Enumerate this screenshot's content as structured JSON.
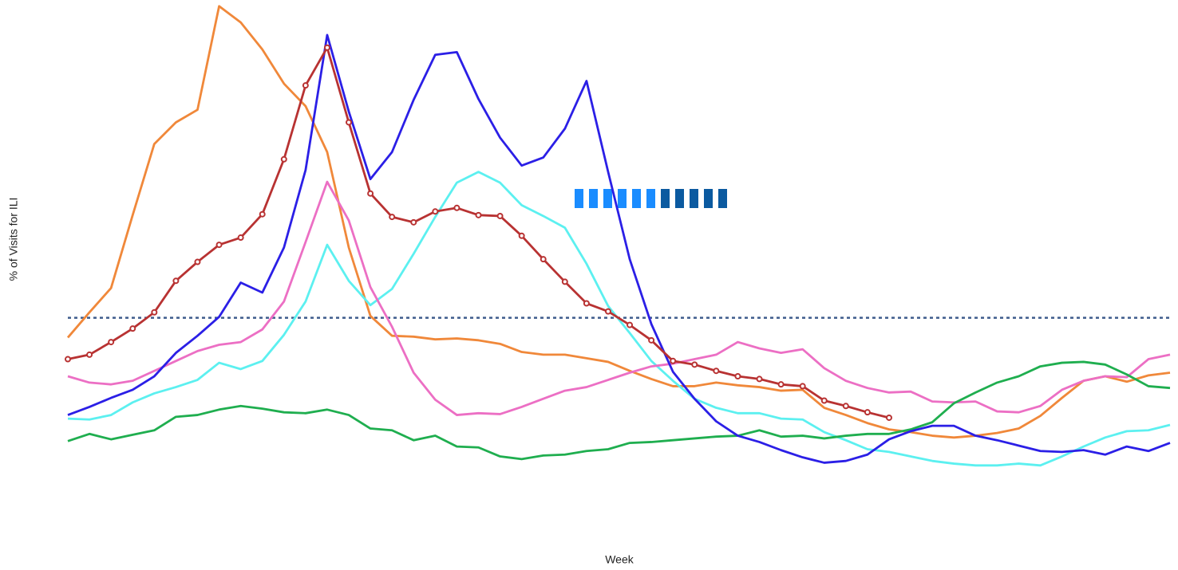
{
  "chart_data": {
    "type": "line",
    "y_label": "% of Visits for ILI",
    "x_label": "Week",
    "categories": [
      null,
      null,
      null,
      null,
      null,
      null,
      null,
      null,
      null,
      null,
      null,
      null,
      null,
      null,
      null,
      null,
      null,
      null,
      null,
      null,
      null,
      null,
      null,
      null,
      null,
      null,
      null,
      null,
      null,
      null,
      null,
      null,
      null,
      null,
      null,
      null,
      null,
      null,
      null,
      null,
      null,
      null,
      null,
      null,
      null,
      null,
      null,
      null,
      null,
      null,
      null,
      null
    ],
    "ylim": [
      0,
      6.1
    ],
    "reference_line": 2.58,
    "reference_color": "#3e5c8c",
    "series": [
      {
        "color": "#f0883a",
        "values": [
          2.36,
          2.64,
          2.91,
          3.72,
          4.51,
          4.75,
          4.89,
          6.04,
          5.86,
          5.56,
          5.18,
          4.93,
          4.42,
          3.36,
          2.6,
          2.38,
          2.37,
          2.34,
          2.35,
          2.33,
          2.29,
          2.2,
          2.17,
          2.17,
          2.13,
          2.09,
          1.99,
          1.9,
          1.82,
          1.82,
          1.86,
          1.83,
          1.81,
          1.77,
          1.78,
          1.58,
          1.5,
          1.41,
          1.34,
          1.31,
          1.27,
          1.25,
          1.27,
          1.3,
          1.35,
          1.49,
          1.69,
          1.88,
          1.93,
          1.87,
          1.94,
          1.97
        ]
      },
      {
        "color": "#5cf0f0",
        "values": [
          1.46,
          1.45,
          1.5,
          1.64,
          1.74,
          1.81,
          1.89,
          2.08,
          2.01,
          2.1,
          2.39,
          2.76,
          3.39,
          2.99,
          2.72,
          2.9,
          3.29,
          3.7,
          4.08,
          4.2,
          4.08,
          3.83,
          3.71,
          3.58,
          3.18,
          2.71,
          2.41,
          2.1,
          1.88,
          1.68,
          1.58,
          1.52,
          1.52,
          1.46,
          1.45,
          1.31,
          1.22,
          1.12,
          1.09,
          1.04,
          0.99,
          0.96,
          0.94,
          0.94,
          0.96,
          0.94,
          1.04,
          1.15,
          1.25,
          1.32,
          1.33,
          1.39
        ]
      },
      {
        "color": "#ec6fc4",
        "values": [
          1.93,
          1.86,
          1.84,
          1.88,
          1.99,
          2.1,
          2.21,
          2.28,
          2.31,
          2.45,
          2.76,
          3.42,
          4.09,
          3.66,
          2.92,
          2.48,
          1.97,
          1.67,
          1.5,
          1.52,
          1.51,
          1.59,
          1.68,
          1.77,
          1.81,
          1.89,
          1.97,
          2.04,
          2.07,
          2.12,
          2.17,
          2.31,
          2.24,
          2.19,
          2.23,
          2.02,
          1.88,
          1.8,
          1.75,
          1.76,
          1.65,
          1.64,
          1.65,
          1.54,
          1.53,
          1.6,
          1.78,
          1.88,
          1.93,
          1.92,
          2.12,
          2.17
        ]
      },
      {
        "color": "#1fae4f",
        "values": [
          1.21,
          1.29,
          1.23,
          1.28,
          1.33,
          1.48,
          1.5,
          1.56,
          1.6,
          1.57,
          1.53,
          1.52,
          1.56,
          1.5,
          1.35,
          1.33,
          1.22,
          1.27,
          1.15,
          1.14,
          1.04,
          1.01,
          1.05,
          1.06,
          1.1,
          1.12,
          1.19,
          1.2,
          1.22,
          1.24,
          1.26,
          1.27,
          1.33,
          1.26,
          1.27,
          1.24,
          1.27,
          1.29,
          1.29,
          1.34,
          1.42,
          1.63,
          1.75,
          1.86,
          1.93,
          2.04,
          2.08,
          2.09,
          2.06,
          1.95,
          1.82,
          1.8
        ]
      },
      {
        "color": "#2b1fe6",
        "values": [
          1.5,
          1.59,
          1.69,
          1.78,
          1.93,
          2.19,
          2.38,
          2.59,
          2.97,
          2.86,
          3.36,
          4.22,
          5.72,
          4.87,
          4.12,
          4.42,
          5.0,
          5.5,
          5.53,
          5.01,
          4.58,
          4.27,
          4.36,
          4.68,
          5.21,
          4.2,
          3.23,
          2.51,
          1.98,
          1.68,
          1.43,
          1.27,
          1.2,
          1.11,
          1.03,
          0.97,
          0.99,
          1.06,
          1.23,
          1.32,
          1.38,
          1.38,
          1.27,
          1.22,
          1.16,
          1.1,
          1.09,
          1.11,
          1.06,
          1.15,
          1.1,
          1.19
        ]
      },
      {
        "color": "#b83232",
        "markers": true,
        "values": [
          2.12,
          2.17,
          2.31,
          2.46,
          2.64,
          2.99,
          3.2,
          3.39,
          3.47,
          3.73,
          4.34,
          5.16,
          5.58,
          4.75,
          3.96,
          3.7,
          3.64,
          3.76,
          3.8,
          3.72,
          3.71,
          3.49,
          3.23,
          2.98,
          2.74,
          2.65,
          2.5,
          2.33,
          2.1,
          2.06,
          1.99,
          1.93,
          1.9,
          1.84,
          1.82,
          1.66,
          1.6,
          1.53,
          1.47,
          null,
          null,
          null,
          null,
          null,
          null,
          null,
          null,
          null,
          null,
          null,
          null,
          null
        ]
      }
    ]
  }
}
